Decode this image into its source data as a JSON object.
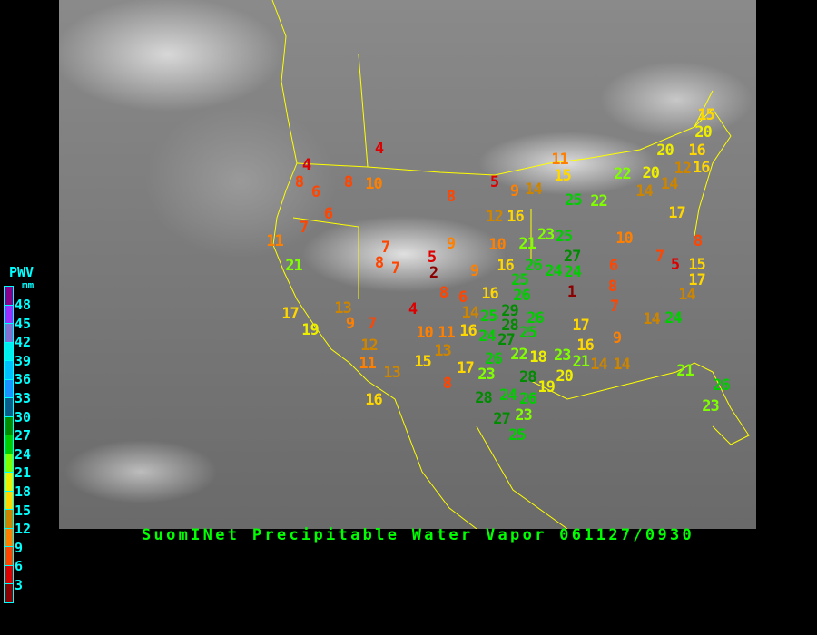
{
  "title": "SuomINet Precipitable Water Vapor 061127/0930",
  "legend": {
    "title": "PWV",
    "unit": "mm",
    "labels": [
      "48",
      "45",
      "42",
      "39",
      "36",
      "33",
      "30",
      "27",
      "24",
      "21",
      "18",
      "15",
      "12",
      "9",
      "6",
      "3"
    ],
    "colors": [
      "#8b008b",
      "#9b30ff",
      "#8470d0",
      "#00eeee",
      "#00bfff",
      "#1e90ff",
      "#0a5a8a",
      "#008b00",
      "#00cd00",
      "#7fff00",
      "#eeee00",
      "#ffd700",
      "#cd8500",
      "#ff8000",
      "#ff4500",
      "#dd0000",
      "#8b0000"
    ]
  },
  "stations": [
    4,
    4,
    8,
    6,
    8,
    10,
    6,
    7,
    11,
    21,
    7,
    8,
    7,
    5,
    2,
    8,
    6,
    4,
    17,
    13,
    9,
    7,
    19,
    12,
    11,
    13,
    16,
    10,
    11,
    13,
    15,
    8,
    8,
    5,
    9,
    14,
    11,
    15,
    12,
    16,
    9,
    10,
    21,
    23,
    25,
    9,
    16,
    26,
    24,
    24,
    27,
    16,
    25,
    26,
    29,
    25,
    28,
    26,
    14,
    16,
    24,
    27,
    25,
    17,
    23,
    26,
    22,
    18,
    23,
    16,
    17,
    1,
    20,
    28,
    19,
    24,
    26,
    28,
    23,
    27,
    25,
    21,
    10,
    6,
    8,
    7,
    9,
    14,
    14,
    25,
    22,
    22,
    20,
    14,
    14,
    20,
    16,
    12,
    16,
    20,
    15,
    17,
    7,
    5,
    8,
    15,
    17,
    14,
    14,
    24,
    21,
    26,
    23
  ]
}
